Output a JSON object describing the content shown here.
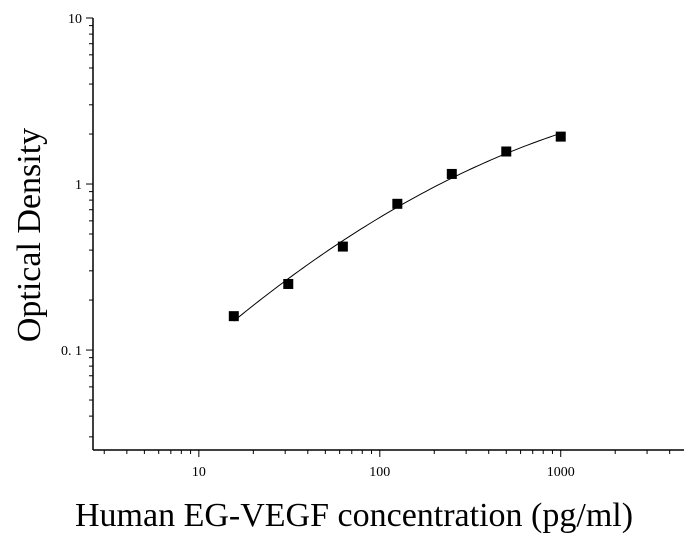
{
  "chart_data": {
    "type": "scatter",
    "xlabel": "Human EG-VEGF concentration (pg/ml)",
    "ylabel": "Optical Density",
    "xscale": "log",
    "yscale": "log",
    "xlim": [
      2.6,
      4800
    ],
    "ylim": [
      0.025,
      10
    ],
    "x_ticks": [
      {
        "value": 10,
        "label": "10"
      },
      {
        "value": 100,
        "label": "100"
      },
      {
        "value": 1000,
        "label": "1000"
      }
    ],
    "y_ticks": [
      {
        "value": 10,
        "label": "10"
      },
      {
        "value": 1,
        "label": "1"
      },
      {
        "value": 0.1,
        "label": "0. 1"
      }
    ],
    "grid": false,
    "marker": "square",
    "series": [
      {
        "x": [
          15.6,
          31.2,
          62.5,
          125,
          250,
          500,
          1000
        ],
        "y": [
          0.16,
          0.25,
          0.42,
          0.76,
          1.15,
          1.57,
          1.93
        ],
        "fit_curve": true
      }
    ],
    "colors": {
      "marker": "#000000",
      "line": "#000000",
      "axis": "#000000"
    }
  }
}
